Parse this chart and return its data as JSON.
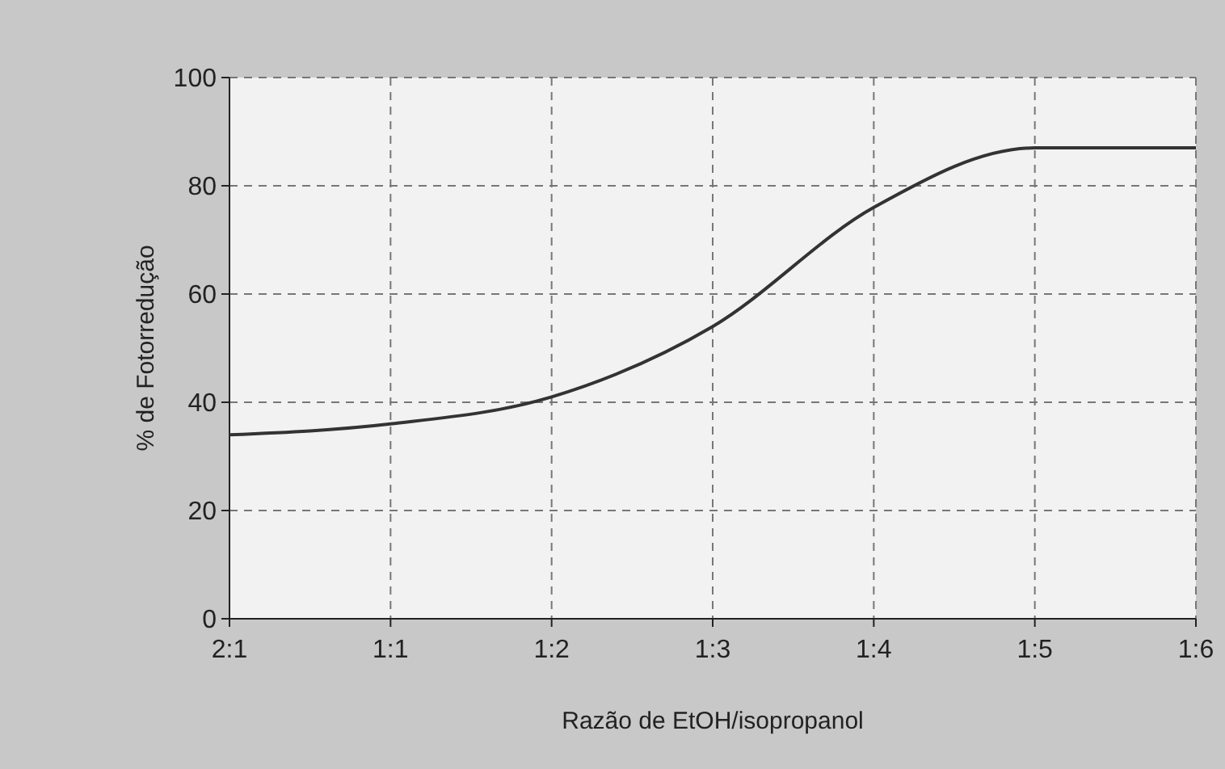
{
  "chart_data": {
    "type": "line",
    "xlabel": "Razão de EtOH/isopropanol",
    "ylabel": "% de Fotorredução",
    "categories": [
      "2:1",
      "1:1",
      "1:2",
      "1:3",
      "1:4",
      "1:5",
      "1:6"
    ],
    "series": [
      {
        "color": "#333333",
        "values": [
          34,
          36,
          41,
          54,
          76,
          87,
          87
        ]
      }
    ],
    "ylim": [
      0,
      100
    ],
    "yticks": [
      0,
      20,
      40,
      60,
      80,
      100
    ],
    "grid": true,
    "marker": "none",
    "line_style": "solid"
  }
}
